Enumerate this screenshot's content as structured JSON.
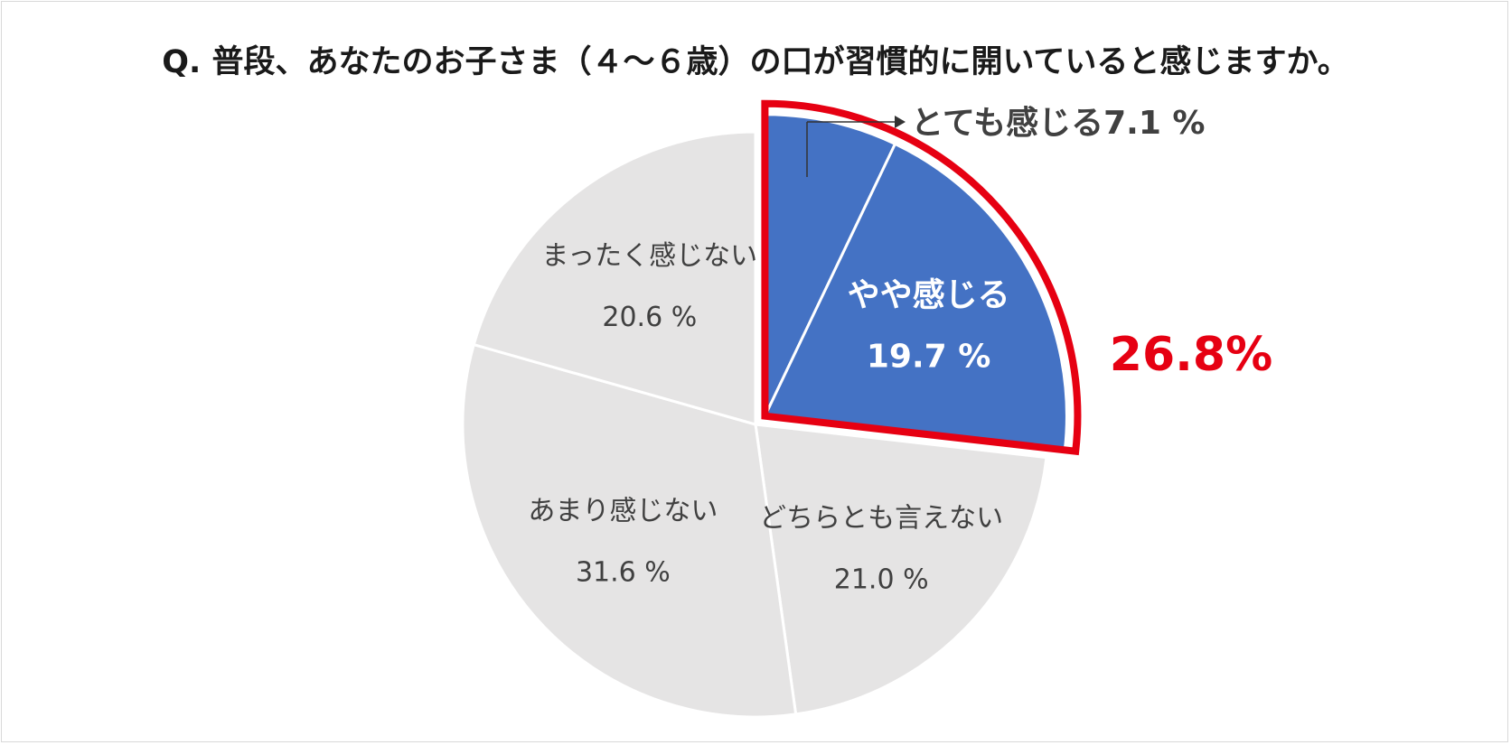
{
  "title": "Q.  普段、あなたのお子さま（４～６歳）の口が習慣的に開いていると感じますか。",
  "colors": {
    "highlight_fill": "#4472c4",
    "other_fill": "#e5e4e4",
    "emphasis": "#e60012",
    "label_dark": "#404040",
    "label_light": "#ffffff"
  },
  "chart_data": {
    "type": "pie",
    "start": "12 o'clock",
    "direction": "clockwise",
    "slices": [
      {
        "label": "とても感じる",
        "value_text": "7.1 %",
        "value": 7.1,
        "highlight": true
      },
      {
        "label": "やや感じる",
        "value_text": "19.7 %",
        "value": 19.7,
        "highlight": true
      },
      {
        "label": "どちらとも言えない",
        "value_text": "21.0 %",
        "value": 21.0,
        "highlight": false
      },
      {
        "label": "あまり感じない",
        "value_text": "31.6 %",
        "value": 31.6,
        "highlight": false
      },
      {
        "label": "まったく感じない",
        "value_text": "20.6 %",
        "value": 20.6,
        "highlight": false
      }
    ],
    "emphasis_total": "26.8%"
  }
}
